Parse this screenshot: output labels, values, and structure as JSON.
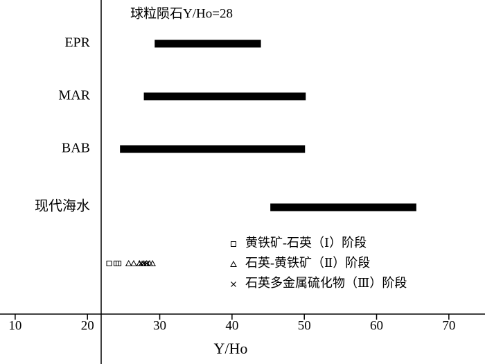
{
  "chart_data": [
    {
      "type": "range",
      "annotation": "球粒陨石Y/Ho=28",
      "categories": [
        "EPR",
        "MAR",
        "BAB",
        "现代海水"
      ],
      "start": [
        29.3,
        27.8,
        24.5,
        45.3
      ],
      "end": [
        44.0,
        50.2,
        50.1,
        65.5
      ],
      "color": "#000000",
      "xlabel": "Y/Ho",
      "xlim": [
        7.9,
        75
      ],
      "xticks": [
        10,
        20,
        30,
        40,
        50,
        60,
        70
      ]
    },
    {
      "type": "scatter",
      "series": [
        {
          "name": "黄铁矿-石英（Ⅰ）阶段",
          "marker": "square",
          "color": "#000000",
          "x": [
            23.0,
            24.0,
            24.3
          ]
        },
        {
          "name": "石英-黄铁矿（Ⅱ）阶段",
          "marker": "triangle",
          "color": "#000000",
          "x": [
            25.7,
            26.4,
            27.2,
            27.7,
            28.2,
            28.6,
            29.0
          ]
        },
        {
          "name": "石英多金属硫化物（Ⅲ）阶段",
          "marker": "cross",
          "color": "#000000",
          "x": [
            27.4,
            27.8,
            28.2
          ]
        }
      ]
    }
  ]
}
